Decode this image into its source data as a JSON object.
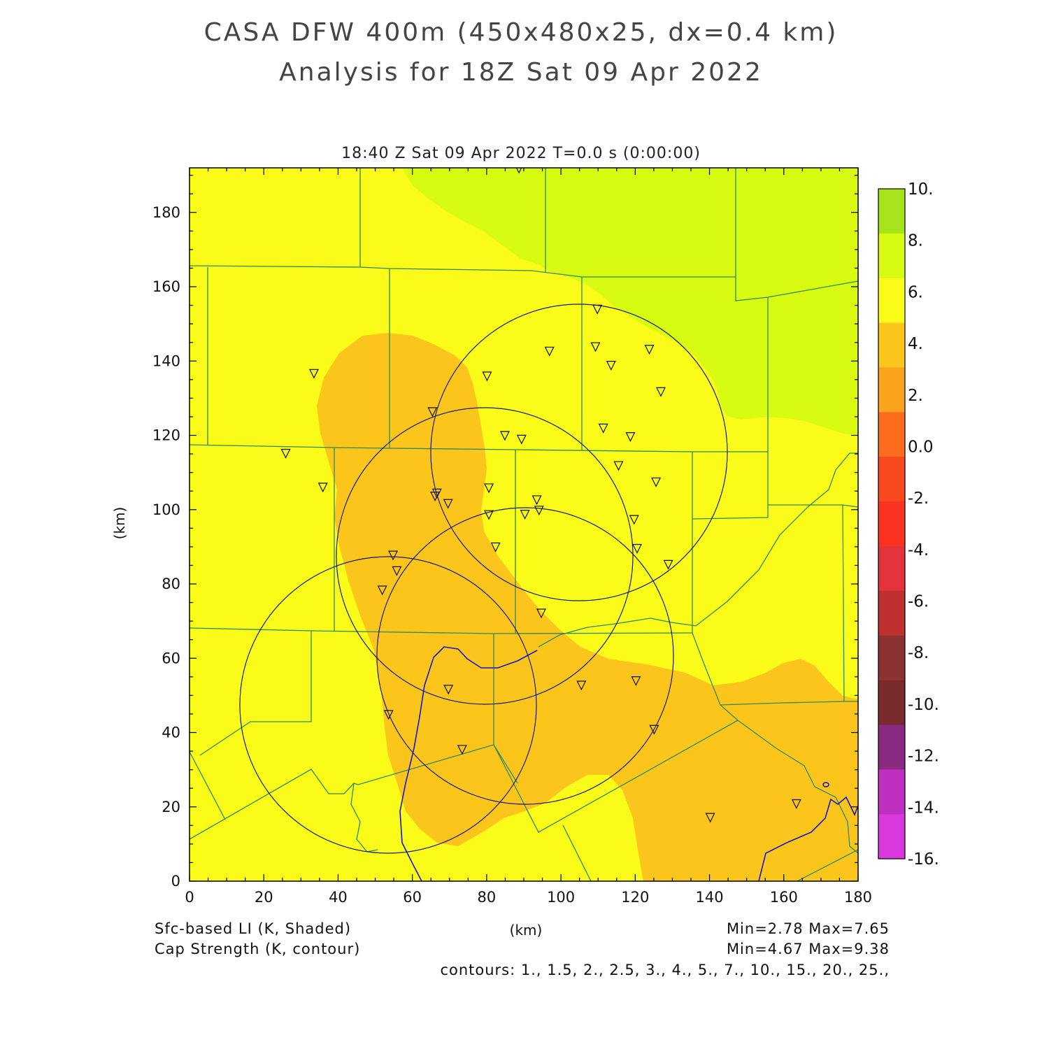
{
  "title_line1": "CASA DFW 400m (450x480x25, dx=0.4 km)",
  "title_line2": "Analysis for 18Z Sat 09 Apr 2022",
  "subtitle": "18:40 Z Sat 09 Apr 2022    T=0.0 s (0:00:00)",
  "x_axis_label": "(km)",
  "y_axis_label": "(km)",
  "x_ticks": [
    "0",
    "20",
    "40",
    "60",
    "80",
    "100",
    "120",
    "140",
    "160",
    "180"
  ],
  "y_ticks": [
    "0",
    "20",
    "40",
    "60",
    "80",
    "100",
    "120",
    "140",
    "160",
    "180"
  ],
  "colorbar_labels": [
    "10.",
    "8.",
    "6.",
    "4.",
    "2.",
    "0.0",
    "-2.",
    "-4.",
    "-6.",
    "-8.",
    "-10.",
    "-12.",
    "-14.",
    "-16."
  ],
  "colors": {
    "li_4_6": "#fbfb1a",
    "li_2_4": "#fbc51c",
    "li_6_8": "#d8fb12",
    "county_lines": "#2e8b57",
    "radar_rings": "#1a1a6e",
    "cap_contour": "#1515c8"
  },
  "colorbar_colors": [
    "#a6e31a",
    "#d8fb12",
    "#fbfb1a",
    "#fbc51c",
    "#fba31c",
    "#fb6c1e",
    "#f84a1e",
    "#fb3220",
    "#e2343a",
    "#c03030",
    "#8c3232",
    "#7a2a2a",
    "#8a2a80",
    "#c030c0",
    "#d838dc"
  ],
  "footer": {
    "left1": "Sfc-based LI (K, Shaded)",
    "left2": "Cap Strength (K, contour)",
    "center": "(km)",
    "right1": "Min=2.78 Max=7.65",
    "right2": "Min=4.67 Max=9.38",
    "contours": "contours: 1., 1.5, 2., 2.5, 3., 4., 5., 7., 10., 15., 20., 25.,"
  },
  "stations_km": [
    [
      88.7,
      191.8
    ],
    [
      109.8,
      153.9
    ],
    [
      96.9,
      142.6
    ],
    [
      109.3,
      143.8
    ],
    [
      123.8,
      143.1
    ],
    [
      113.5,
      138.8
    ],
    [
      80.1,
      135.9
    ],
    [
      126.9,
      131.7
    ],
    [
      33.5,
      136.6
    ],
    [
      65.4,
      126.3
    ],
    [
      111.4,
      121.9
    ],
    [
      118.7,
      119.6
    ],
    [
      84.9,
      119.9
    ],
    [
      89.4,
      118.9
    ],
    [
      25.9,
      115.1
    ],
    [
      115.5,
      111.8
    ],
    [
      125.6,
      107.4
    ],
    [
      35.9,
      106.0
    ],
    [
      80.6,
      105.8
    ],
    [
      66.6,
      104.4
    ],
    [
      66.1,
      103.6
    ],
    [
      69.6,
      101.6
    ],
    [
      93.5,
      102.6
    ],
    [
      94.1,
      99.8
    ],
    [
      90.3,
      98.7
    ],
    [
      80.6,
      98.6
    ],
    [
      119.7,
      97.3
    ],
    [
      82.4,
      89.9
    ],
    [
      120.5,
      89.5
    ],
    [
      54.8,
      87.7
    ],
    [
      55.8,
      83.5
    ],
    [
      128.9,
      85.2
    ],
    [
      51.9,
      78.3
    ],
    [
      94.7,
      72.1
    ],
    [
      120.2,
      53.9
    ],
    [
      105.5,
      52.7
    ],
    [
      69.7,
      51.6
    ],
    [
      53.6,
      44.8
    ],
    [
      125.1,
      40.8
    ],
    [
      73.4,
      35.4
    ],
    [
      140.2,
      17.1
    ],
    [
      163.4,
      20.8
    ]
  ]
}
